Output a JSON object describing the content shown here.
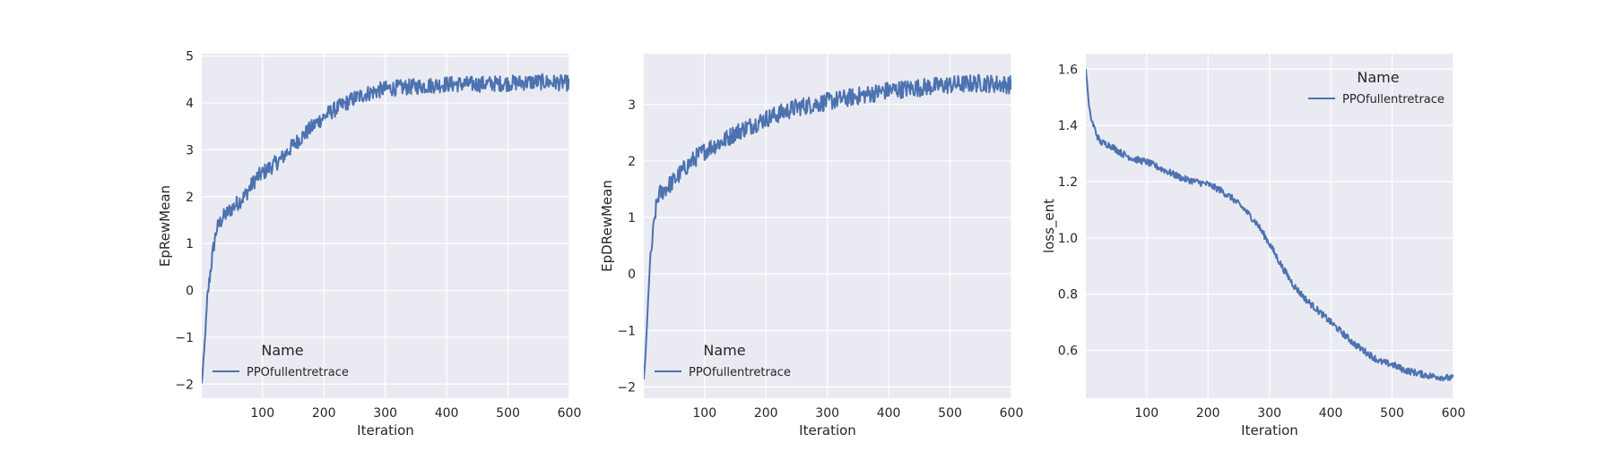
{
  "chart_data": [
    {
      "type": "line",
      "xlabel": "Iteration",
      "ylabel": "EpRewMean",
      "xlim": [
        1,
        600
      ],
      "ylim": [
        -2.3,
        5.05
      ],
      "xticks": [
        100,
        200,
        300,
        400,
        500,
        600
      ],
      "yticks": [
        -2,
        -1,
        0,
        1,
        2,
        3,
        4,
        5
      ],
      "ytick_labels": [
        "−2",
        "−1",
        "0",
        "1",
        "2",
        "3",
        "4",
        "5"
      ],
      "grid": true,
      "legend": {
        "title": "Name",
        "position": "lower-left",
        "entries": [
          "PPOfullentretrace"
        ]
      },
      "series": [
        {
          "name": "PPOfullentretrace",
          "color": "#4c72b0",
          "anchors": [
            [
              1,
              -2.0
            ],
            [
              5,
              -1.3
            ],
            [
              10,
              -0.2
            ],
            [
              15,
              0.4
            ],
            [
              20,
              0.9
            ],
            [
              25,
              1.3
            ],
            [
              35,
              1.55
            ],
            [
              50,
              1.75
            ],
            [
              70,
              2.0
            ],
            [
              90,
              2.4
            ],
            [
              110,
              2.6
            ],
            [
              130,
              2.8
            ],
            [
              150,
              3.1
            ],
            [
              170,
              3.35
            ],
            [
              190,
              3.6
            ],
            [
              210,
              3.8
            ],
            [
              230,
              3.95
            ],
            [
              250,
              4.1
            ],
            [
              270,
              4.2
            ],
            [
              300,
              4.3
            ],
            [
              350,
              4.35
            ],
            [
              400,
              4.4
            ],
            [
              450,
              4.4
            ],
            [
              500,
              4.42
            ],
            [
              550,
              4.45
            ],
            [
              600,
              4.42
            ]
          ],
          "noise": 0.17
        }
      ]
    },
    {
      "type": "line",
      "xlabel": "Iteration",
      "ylabel": "EpDRewMean",
      "xlim": [
        1,
        600
      ],
      "ylim": [
        -2.2,
        3.9
      ],
      "xticks": [
        100,
        200,
        300,
        400,
        500,
        600
      ],
      "yticks": [
        -2,
        -1,
        0,
        1,
        2,
        3
      ],
      "ytick_labels": [
        "−2",
        "−1",
        "0",
        "1",
        "2",
        "3"
      ],
      "grid": true,
      "legend": {
        "title": "Name",
        "position": "lower-left",
        "entries": [
          "PPOfullentretrace"
        ]
      },
      "series": [
        {
          "name": "PPOfullentretrace",
          "color": "#4c72b0",
          "anchors": [
            [
              1,
              -1.9
            ],
            [
              5,
              -1.2
            ],
            [
              10,
              0.0
            ],
            [
              15,
              0.6
            ],
            [
              20,
              1.1
            ],
            [
              25,
              1.4
            ],
            [
              35,
              1.5
            ],
            [
              50,
              1.65
            ],
            [
              70,
              1.9
            ],
            [
              90,
              2.1
            ],
            [
              110,
              2.25
            ],
            [
              130,
              2.35
            ],
            [
              150,
              2.5
            ],
            [
              170,
              2.6
            ],
            [
              200,
              2.75
            ],
            [
              250,
              2.95
            ],
            [
              300,
              3.05
            ],
            [
              350,
              3.15
            ],
            [
              400,
              3.25
            ],
            [
              450,
              3.3
            ],
            [
              500,
              3.35
            ],
            [
              550,
              3.38
            ],
            [
              600,
              3.35
            ]
          ],
          "noise": 0.16
        }
      ]
    },
    {
      "type": "line",
      "xlabel": "Iteration",
      "ylabel": "loss_ent",
      "xlim": [
        1,
        600
      ],
      "ylim": [
        0.43,
        1.655
      ],
      "xticks": [
        100,
        200,
        300,
        400,
        500,
        600
      ],
      "yticks": [
        0.6,
        0.8,
        1.0,
        1.2,
        1.4,
        1.6
      ],
      "ytick_labels": [
        "0.6",
        "0.8",
        "1.0",
        "1.2",
        "1.4",
        "1.6"
      ],
      "grid": true,
      "legend": {
        "title": "Name",
        "position": "upper-right",
        "entries": [
          "PPOfullentretrace"
        ]
      },
      "series": [
        {
          "name": "PPOfullentretrace",
          "color": "#4c72b0",
          "anchors": [
            [
              1,
              1.6
            ],
            [
              3,
              1.55
            ],
            [
              6,
              1.47
            ],
            [
              10,
              1.42
            ],
            [
              15,
              1.39
            ],
            [
              20,
              1.36
            ],
            [
              25,
              1.34
            ],
            [
              40,
              1.33
            ],
            [
              60,
              1.3
            ],
            [
              80,
              1.28
            ],
            [
              100,
              1.27
            ],
            [
              120,
              1.25
            ],
            [
              140,
              1.23
            ],
            [
              160,
              1.21
            ],
            [
              180,
              1.2
            ],
            [
              200,
              1.19
            ],
            [
              220,
              1.17
            ],
            [
              240,
              1.14
            ],
            [
              260,
              1.1
            ],
            [
              280,
              1.05
            ],
            [
              300,
              0.98
            ],
            [
              320,
              0.9
            ],
            [
              340,
              0.83
            ],
            [
              360,
              0.78
            ],
            [
              380,
              0.74
            ],
            [
              400,
              0.7
            ],
            [
              420,
              0.66
            ],
            [
              440,
              0.62
            ],
            [
              460,
              0.59
            ],
            [
              480,
              0.56
            ],
            [
              500,
              0.55
            ],
            [
              520,
              0.53
            ],
            [
              540,
              0.52
            ],
            [
              560,
              0.51
            ],
            [
              580,
              0.505
            ],
            [
              600,
              0.5
            ]
          ],
          "noise": 0.012
        }
      ]
    }
  ]
}
